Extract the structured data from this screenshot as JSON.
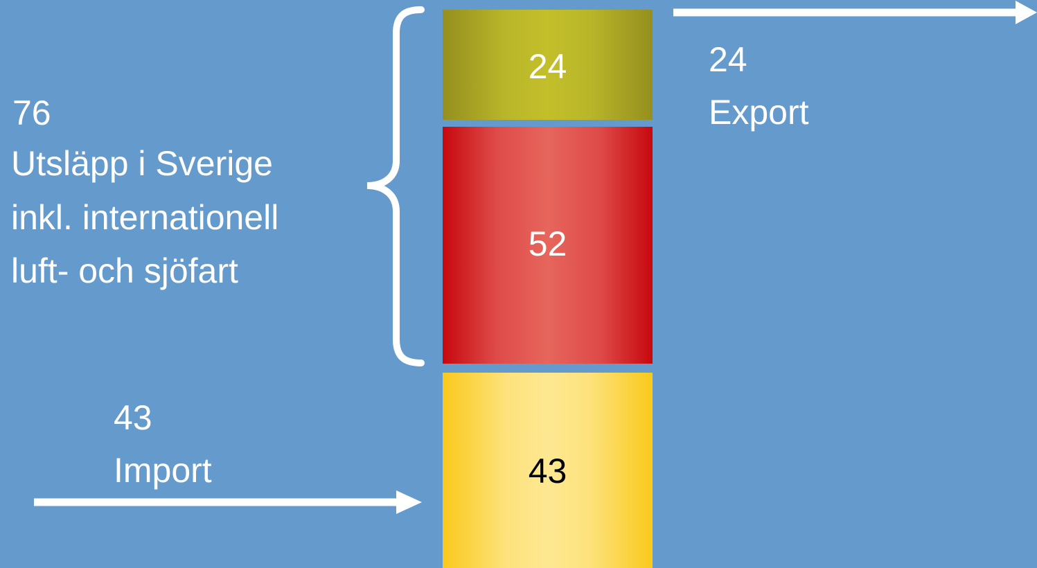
{
  "segments": {
    "export_value": "24",
    "domestic_value": "52",
    "import_value": "43"
  },
  "labels": {
    "total_value": "76",
    "total_line1": "Utsläpp i Sverige",
    "total_line2": "inkl. internationell",
    "total_line3": "luft- och sjöfart",
    "export_value": "24",
    "export_text": "Export",
    "import_value": "43",
    "import_text": "Import"
  },
  "colors": {
    "background": "#659acc",
    "export_segment": "#c3bf2a",
    "domestic_segment": "#e6665c",
    "import_segment": "#fde892",
    "arrow": "#ffffff"
  }
}
